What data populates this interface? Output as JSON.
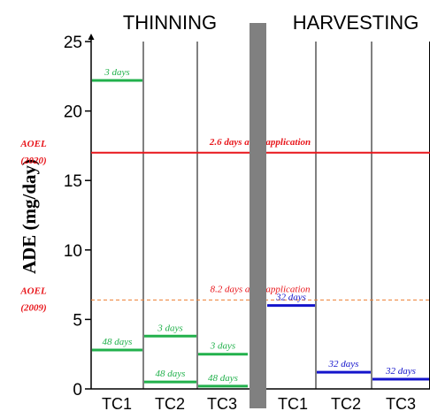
{
  "chart_data": {
    "type": "line",
    "ylabel": "ADE (mg/day)",
    "ylim": [
      0,
      25
    ],
    "yticks": [
      0,
      5,
      10,
      15,
      20,
      25
    ],
    "groups": [
      {
        "label": "THINNING",
        "categories": [
          "TC1",
          "TC2",
          "TC3"
        ]
      },
      {
        "label": "HARVESTING",
        "categories": [
          "TC1",
          "TC2",
          "TC3"
        ]
      }
    ],
    "series": [
      {
        "color": "#22b14c",
        "values": [
          {
            "group": 0,
            "category": 0,
            "y": 22.2,
            "label": "3 days"
          },
          {
            "group": 0,
            "category": 0,
            "y": 2.8,
            "label": "48 days"
          },
          {
            "group": 0,
            "category": 1,
            "y": 3.8,
            "label": "3 days"
          },
          {
            "group": 0,
            "category": 1,
            "y": 0.5,
            "label": "48 days"
          },
          {
            "group": 0,
            "category": 2,
            "y": 2.5,
            "label": "3 days"
          },
          {
            "group": 0,
            "category": 2,
            "y": 0.2,
            "label": "48 days"
          }
        ]
      },
      {
        "color": "#1414cc",
        "values": [
          {
            "group": 1,
            "category": 0,
            "y": 6.0,
            "label": "32 days"
          },
          {
            "group": 1,
            "category": 1,
            "y": 1.2,
            "label": "32 days"
          },
          {
            "group": 1,
            "category": 2,
            "y": 0.7,
            "label": "32 days"
          }
        ]
      }
    ],
    "reference_lines": [
      {
        "y": 17.0,
        "label": "AOEL\n(2020)",
        "annotation": "2.6 days after application",
        "color": "#e8161b",
        "style": "solid"
      },
      {
        "y": 6.4,
        "label": "AOEL\n(2009)",
        "annotation": "8.2 days after application",
        "color": "#ed7d31",
        "style": "dashed"
      }
    ],
    "colors": {
      "divider": "#808080",
      "axis": "#000000",
      "ref_label": "#e8161b"
    }
  }
}
